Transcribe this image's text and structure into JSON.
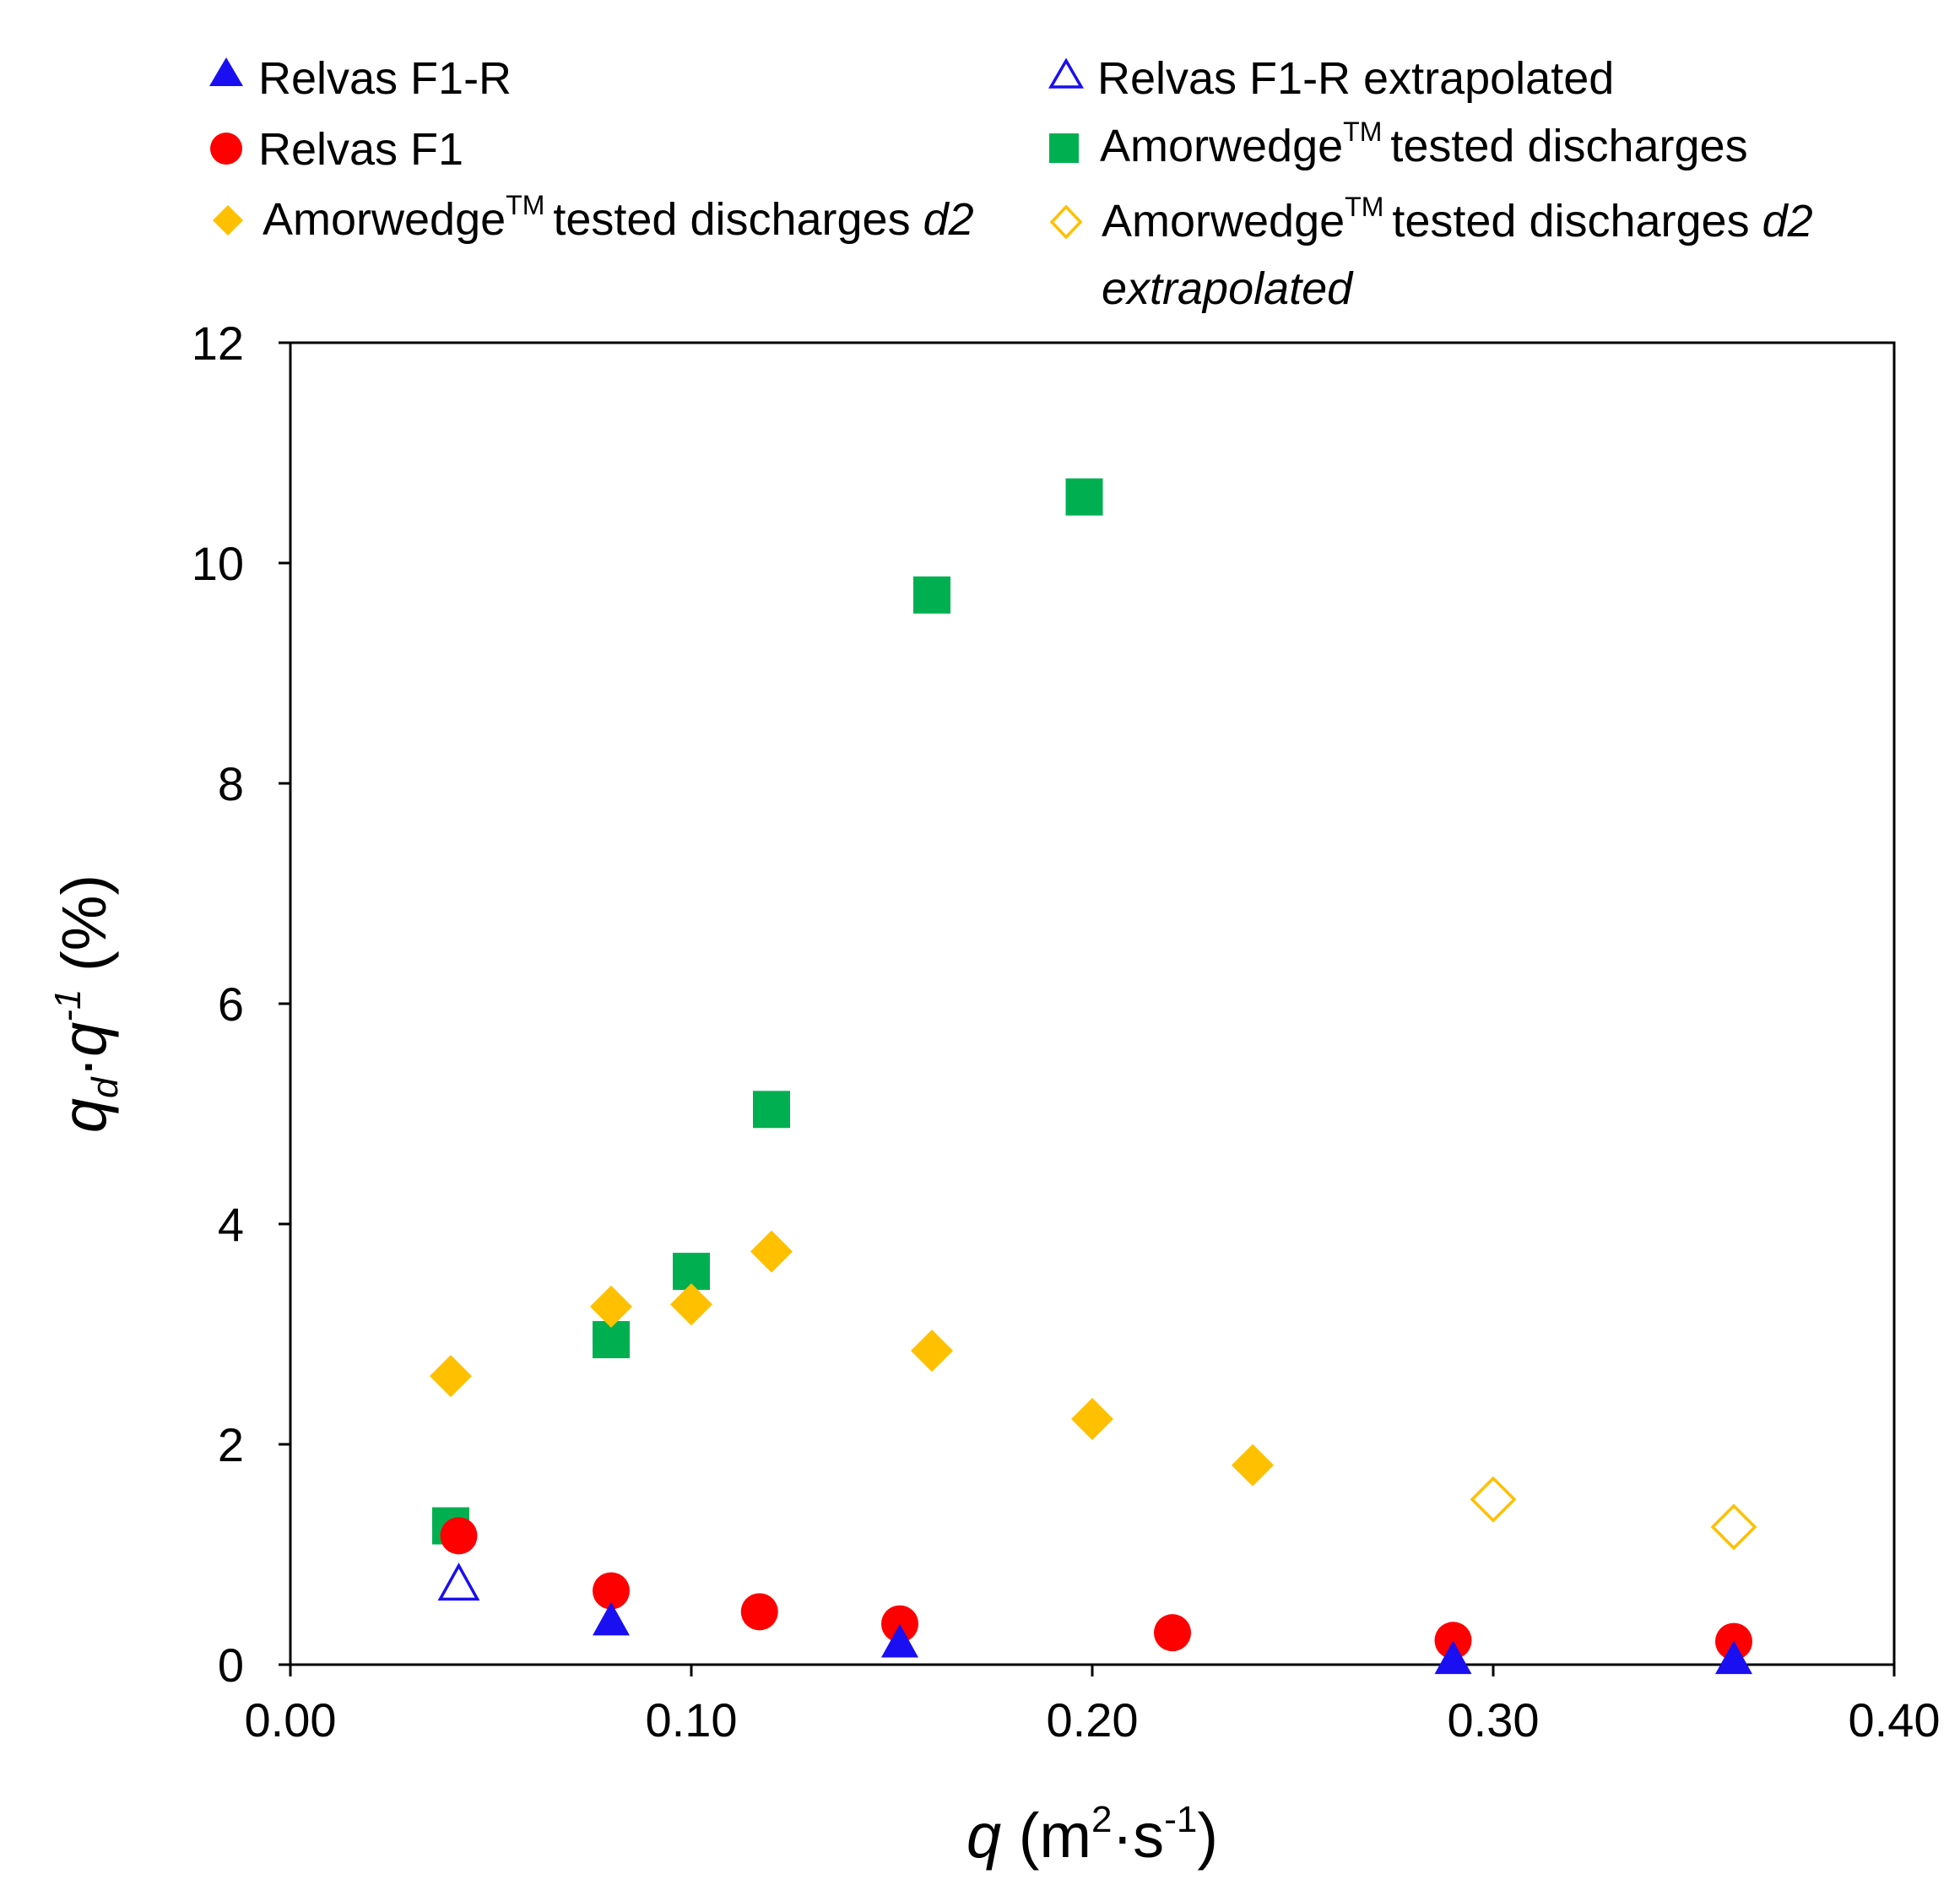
{
  "chart_data": {
    "type": "scatter",
    "title": "",
    "xlabel": {
      "var": "q",
      "open": " (m",
      "sup1": "2",
      "dot": "·s",
      "sup2": "-1",
      "close": ")"
    },
    "ylabel": {
      "var1": "q",
      "sub": "d",
      "dot": "·",
      "var2": "q",
      "sup": "-1",
      "rest": " (%)"
    },
    "xlim": [
      0,
      0.4
    ],
    "ylim": [
      0,
      12
    ],
    "xticks": [
      "0.00",
      "0.10",
      "0.20",
      "0.30",
      "0.40"
    ],
    "yticks": [
      "0",
      "2",
      "4",
      "6",
      "8",
      "10",
      "12"
    ],
    "grid": false,
    "legend_position": "top",
    "series": [
      {
        "id": "f1r",
        "name": "Relvas F1-R",
        "marker": "triangle",
        "filled": true,
        "color": "#1a0ff0",
        "points": [
          [
            0.08,
            0.4
          ],
          [
            0.152,
            0.2
          ],
          [
            0.29,
            0.05
          ],
          [
            0.36,
            0.05
          ]
        ]
      },
      {
        "id": "f1r_ext",
        "name": "Relvas F1-R extrapolated",
        "marker": "triangle",
        "filled": false,
        "color": "#1a0ff0",
        "points": [
          [
            0.042,
            0.73
          ]
        ]
      },
      {
        "id": "f1",
        "name": "Relvas F1",
        "marker": "circle",
        "filled": true,
        "color": "#ff0000",
        "points": [
          [
            0.042,
            1.17
          ],
          [
            0.08,
            0.67
          ],
          [
            0.117,
            0.48
          ],
          [
            0.152,
            0.37
          ],
          [
            0.22,
            0.29
          ],
          [
            0.29,
            0.22
          ],
          [
            0.36,
            0.21
          ]
        ]
      },
      {
        "id": "amor",
        "name_main": "Amorwedge",
        "name_sup": "TM",
        "name_rest": "tested discharges",
        "marker": "square",
        "filled": true,
        "color": "#00b050",
        "points": [
          [
            0.04,
            1.26
          ],
          [
            0.08,
            2.95
          ],
          [
            0.1,
            3.57
          ],
          [
            0.12,
            5.04
          ],
          [
            0.16,
            9.71
          ],
          [
            0.198,
            10.6
          ]
        ]
      },
      {
        "id": "amor_d2",
        "name_main": "Amorwedge",
        "name_sup": "TM",
        "name_rest": "tested discharges ",
        "name_italic": "d2",
        "marker": "diamond",
        "filled": true,
        "color": "#ffc000",
        "points": [
          [
            0.04,
            2.62
          ],
          [
            0.08,
            3.25
          ],
          [
            0.1,
            3.27
          ],
          [
            0.12,
            3.75
          ],
          [
            0.16,
            2.85
          ],
          [
            0.2,
            2.23
          ],
          [
            0.24,
            1.81
          ]
        ]
      },
      {
        "id": "amor_d2_ext",
        "name_main": "Amorwedge",
        "name_sup": "TM",
        "name_rest": "tested discharges ",
        "name_italic": "d2",
        "name_line2": "extrapolated",
        "marker": "diamond",
        "filled": false,
        "color": "#ffc000",
        "points": [
          [
            0.3,
            1.5
          ],
          [
            0.36,
            1.25
          ]
        ]
      }
    ]
  }
}
